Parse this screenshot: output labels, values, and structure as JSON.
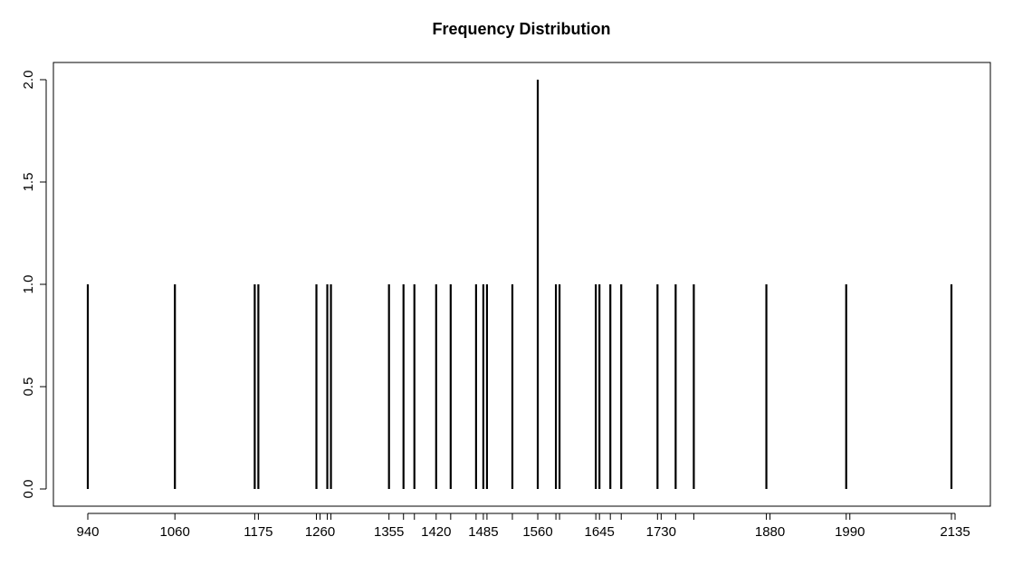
{
  "chart_data": {
    "type": "bar",
    "title": "Frequency Distribution",
    "xlabel": "",
    "ylabel": "",
    "xlim": [
      924,
      2150
    ],
    "ylim": [
      0,
      2
    ],
    "x_ticks": [
      940,
      1060,
      1175,
      1260,
      1355,
      1420,
      1485,
      1560,
      1645,
      1730,
      1880,
      1990,
      2135
    ],
    "x_tick_labels": [
      "940",
      "1060",
      "1175",
      "1260",
      "1355",
      "1420",
      "1485",
      "1560",
      "1645",
      "1730",
      "1880",
      "1990",
      "2135"
    ],
    "y_ticks": [
      0,
      0.5,
      1,
      1.5,
      2
    ],
    "y_tick_labels": [
      "0.0",
      "0.5",
      "1.0",
      "1.5",
      "2.0"
    ],
    "x": [
      940,
      1060,
      1170,
      1175,
      1255,
      1270,
      1275,
      1355,
      1375,
      1390,
      1420,
      1440,
      1475,
      1485,
      1490,
      1525,
      1560,
      1585,
      1590,
      1640,
      1645,
      1660,
      1675,
      1725,
      1750,
      1775,
      1875,
      1985,
      2130
    ],
    "values": [
      1,
      1,
      1,
      1,
      1,
      1,
      1,
      1,
      1,
      1,
      1,
      1,
      1,
      1,
      1,
      1,
      2,
      1,
      1,
      1,
      1,
      1,
      1,
      1,
      1,
      1,
      1,
      1,
      1
    ],
    "grid": false,
    "legend": "none"
  }
}
